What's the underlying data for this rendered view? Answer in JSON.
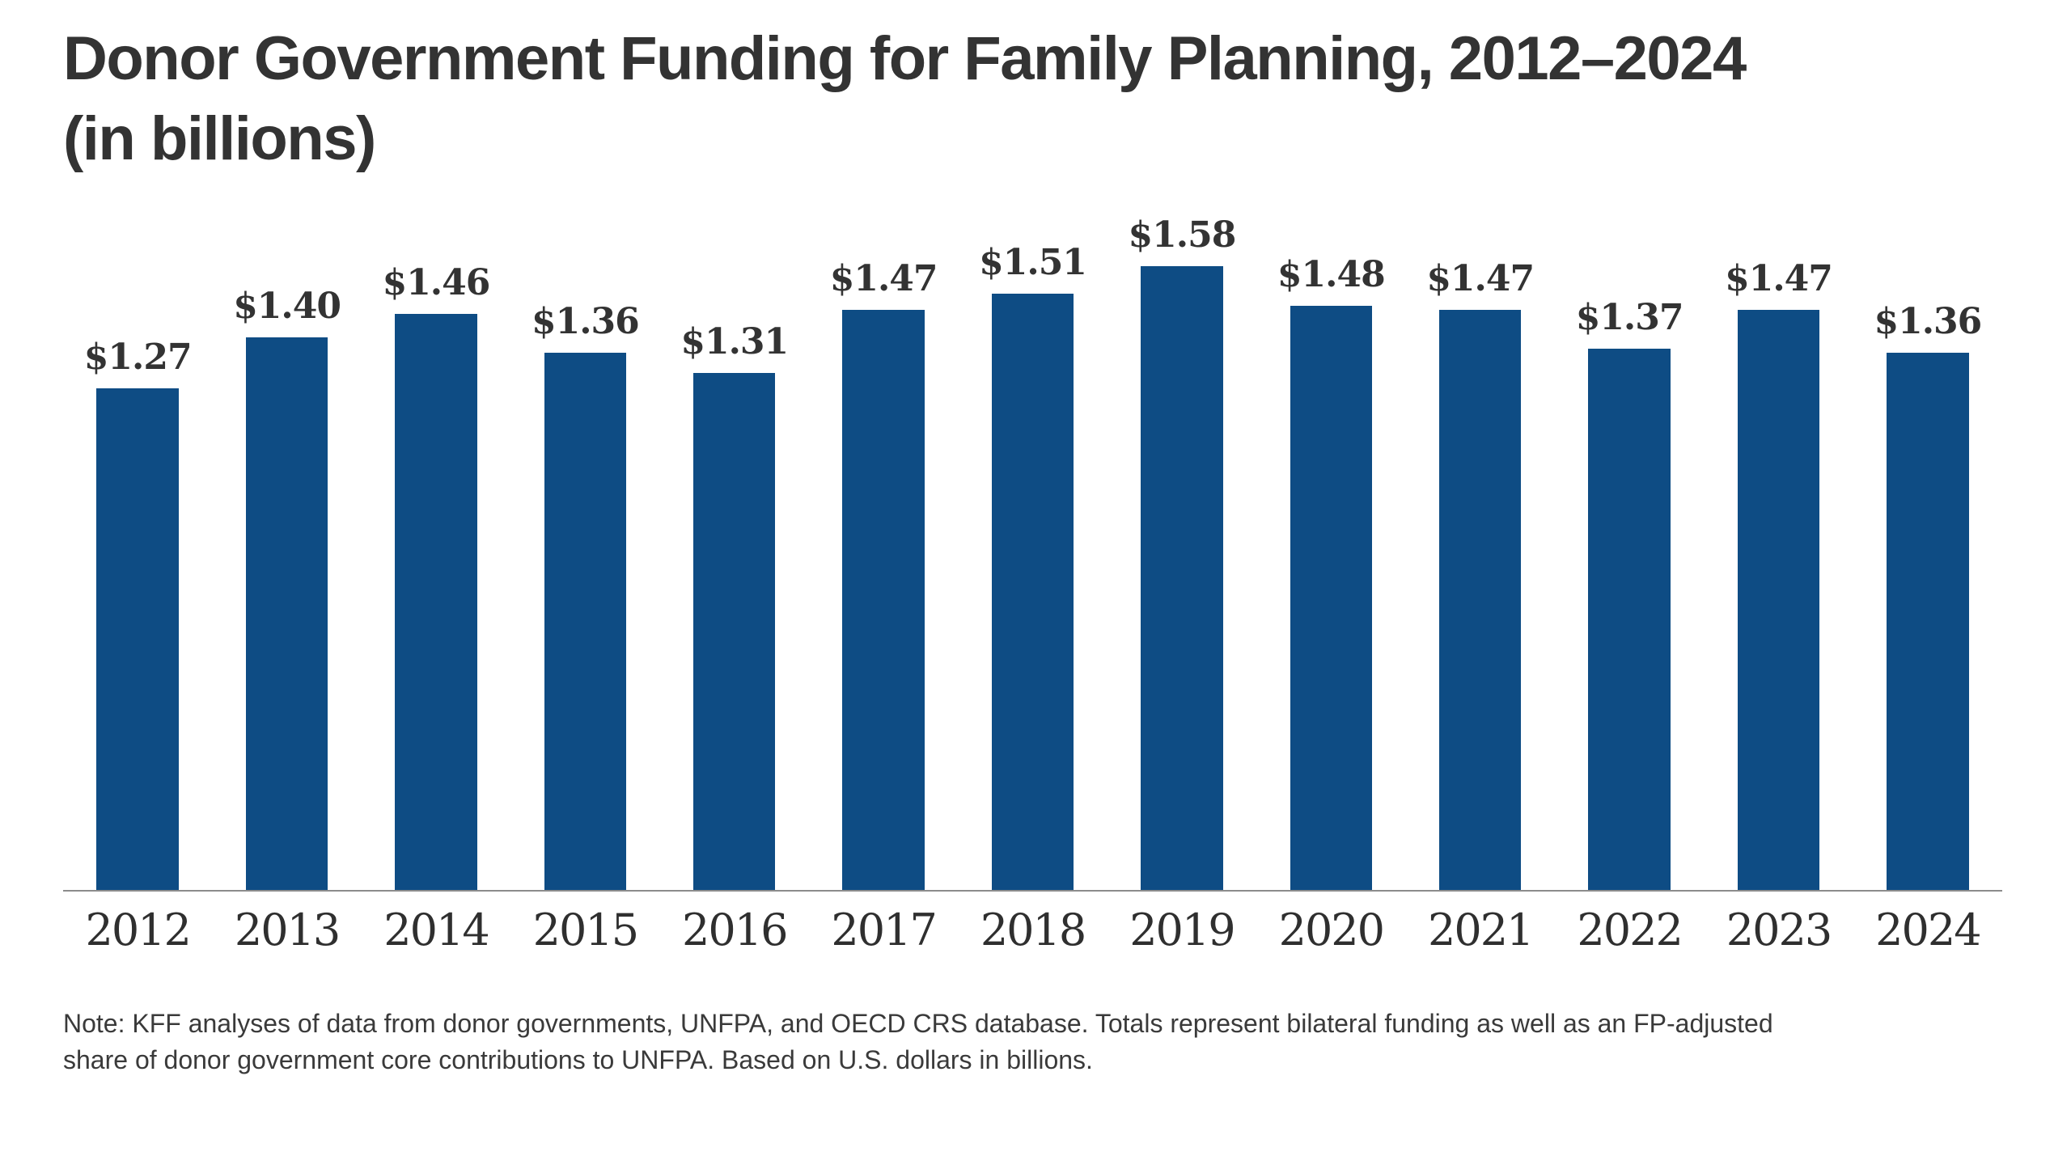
{
  "header": {
    "title_lines": [
      "Donor Government Funding for Family Planning, 2012–2024",
      "(in billions)"
    ]
  },
  "chart_data": {
    "type": "bar",
    "title": "Donor Government Funding for Family Planning, 2012–2024 (in billions)",
    "categories": [
      "2012",
      "2013",
      "2014",
      "2015",
      "2016",
      "2017",
      "2018",
      "2019",
      "2020",
      "2021",
      "2022",
      "2023",
      "2024"
    ],
    "values": [
      1.27,
      1.4,
      1.46,
      1.36,
      1.31,
      1.47,
      1.51,
      1.58,
      1.48,
      1.47,
      1.37,
      1.47,
      1.36
    ],
    "value_labels": [
      "$1.27",
      "$1.40",
      "$1.46",
      "$1.36",
      "$1.31",
      "$1.47",
      "$1.51",
      "$1.58",
      "$1.48",
      "$1.47",
      "$1.37",
      "$1.47",
      "$1.36"
    ],
    "xlabel": "",
    "ylabel": "",
    "ylim": [
      0,
      1.58
    ],
    "grid": false,
    "legend": false,
    "bar_color": "#0E4C84",
    "axis_line_color": "#8c8c8c"
  },
  "note": {
    "lines": [
      "Note: KFF analyses of data from donor governments, UNFPA, and OECD CRS database. Totals represent bilateral funding as well as an FP-adjusted",
      "share of donor government core contributions to UNFPA. Based on U.S. dollars in billions."
    ]
  }
}
